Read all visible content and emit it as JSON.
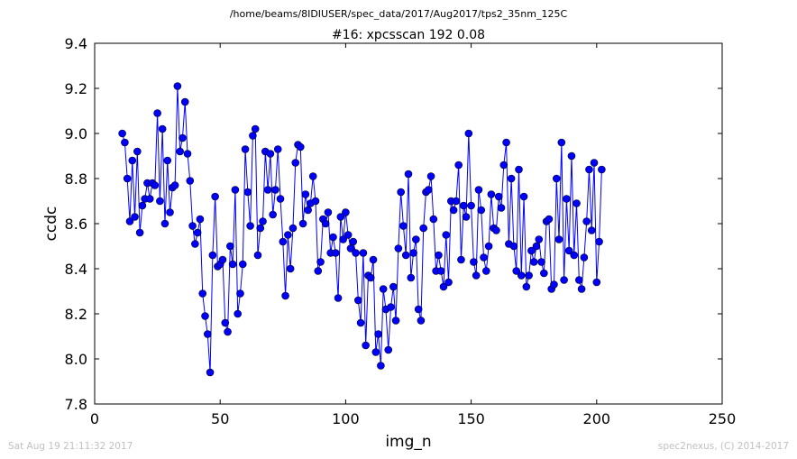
{
  "figure": {
    "suptitle": "/home/beams/8IDIUSER/spec_data/2017/Aug2017/tps2_35nm_125C",
    "footer_left": "Sat Aug 19 21:11:32 2017",
    "footer_right": "spec2nexus, (C) 2014-2017"
  },
  "chart_data": {
    "type": "line",
    "title": "#16: xpcsscan 192 0.08",
    "xlabel": "img_n",
    "ylabel": "ccdc",
    "xlim": [
      0,
      250
    ],
    "ylim": [
      7.8,
      9.4
    ],
    "xticks": [
      0,
      50,
      100,
      150,
      200,
      250
    ],
    "yticks": [
      7.8,
      8.0,
      8.2,
      8.4,
      8.6,
      8.8,
      9.0,
      9.2,
      9.4
    ],
    "xtick_labels": [
      "0",
      "50",
      "100",
      "150",
      "200",
      "250"
    ],
    "ytick_labels": [
      "7.8",
      "8.0",
      "8.2",
      "8.4",
      "8.6",
      "8.8",
      "9.0",
      "9.2",
      "9.4"
    ],
    "grid": false,
    "marker": "circle",
    "color": "#0000ff",
    "series": [
      {
        "x_start": 11,
        "x_step": 1,
        "values": [
          9.0,
          8.96,
          8.8,
          8.61,
          8.88,
          8.63,
          8.92,
          8.56,
          8.68,
          8.71,
          8.78,
          8.71,
          8.78,
          8.77,
          9.09,
          8.7,
          9.02,
          8.6,
          8.88,
          8.65,
          8.76,
          8.77,
          9.21,
          8.92,
          8.98,
          9.14,
          8.91,
          8.79,
          8.59,
          8.51,
          8.56,
          8.62,
          8.29,
          8.19,
          8.11,
          7.94,
          8.46,
          8.72,
          8.41,
          8.42,
          8.44,
          8.16,
          8.12,
          8.5,
          8.42,
          8.75,
          8.2,
          8.29,
          8.42,
          8.93,
          8.74,
          8.59,
          8.99,
          9.02,
          8.46,
          8.58,
          8.61,
          8.92,
          8.75,
          8.91,
          8.64,
          8.75,
          8.93,
          8.71,
          8.52,
          8.28,
          8.55,
          8.4,
          8.58,
          8.87,
          8.95,
          8.94,
          8.6,
          8.73,
          8.66,
          8.69,
          8.81,
          8.7,
          8.39,
          8.43,
          8.62,
          8.6,
          8.65,
          8.47,
          8.54,
          8.47,
          8.27,
          8.63,
          8.53,
          8.65,
          8.55,
          8.49,
          8.52,
          8.47,
          8.26,
          8.16,
          8.47,
          8.06,
          8.37,
          8.36,
          8.44,
          8.03,
          8.11,
          7.97,
          8.31,
          8.22,
          8.04,
          8.23,
          8.32,
          8.17,
          8.49,
          8.74,
          8.59,
          8.46,
          8.82,
          8.36,
          8.47,
          8.53,
          8.22,
          8.17,
          8.58,
          8.74,
          8.75,
          8.81,
          8.62,
          8.39,
          8.46,
          8.39,
          8.32,
          8.55,
          8.34,
          8.7,
          8.66,
          8.7,
          8.86,
          8.44,
          8.68,
          8.63,
          9.0,
          8.68,
          8.43,
          8.37,
          8.75,
          8.66,
          8.45,
          8.39,
          8.5,
          8.73,
          8.58,
          8.57,
          8.72,
          8.67,
          8.86,
          8.96,
          8.51,
          8.8,
          8.5,
          8.39,
          8.84,
          8.37,
          8.72,
          8.32,
          8.37,
          8.48,
          8.43,
          8.5,
          8.53,
          8.43,
          8.38,
          8.61,
          8.62,
          8.31,
          8.33,
          8.8,
          8.53,
          8.96,
          8.35,
          8.71,
          8.48,
          8.9,
          8.46,
          8.69,
          8.35,
          8.31,
          8.45,
          8.61,
          8.84,
          8.57,
          8.87,
          8.34,
          8.52,
          8.84
        ]
      }
    ]
  }
}
